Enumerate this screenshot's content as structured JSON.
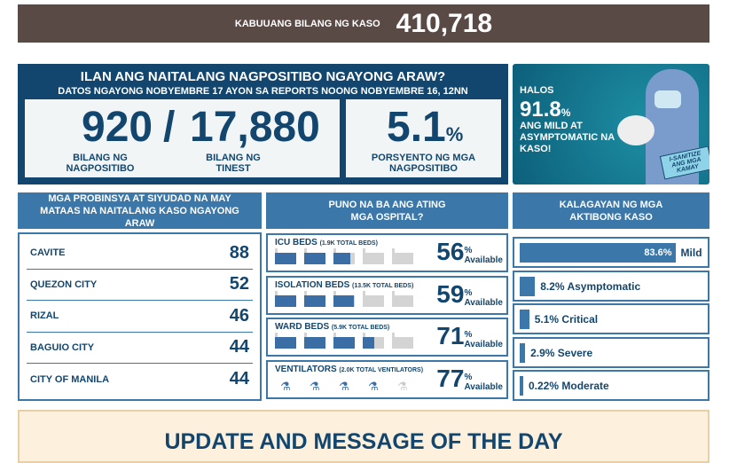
{
  "banner": {
    "label": "KABUUANG BILANG NG KASO",
    "total": "410,718"
  },
  "today": {
    "title": "ILAN ANG NAITALANG NAGPOSITIBO NGAYONG ARAW?",
    "subtitle": "DATOS NGAYONG NOBYEMBRE 17 AYON SA REPORTS NOONG NOBYEMBRE 16, 12NN",
    "positive": "920",
    "slash": "/",
    "tested": "17,880",
    "positive_label": "BILANG NG NAGPOSITIBO",
    "tested_label": "BILANG NG TINEST",
    "rate": "5.1",
    "rate_unit": "%",
    "rate_label": "PORSYENTO NG MGA NAGPOSITIBO"
  },
  "promo": {
    "halos": "HALOS",
    "value": "91.8",
    "unit": "%",
    "text": "ANG MILD AT ASYMPTOMATIC NA KASO!",
    "sign": "I-SANITIZE ANG MGA KAMAY"
  },
  "provinces": {
    "header": "MGA PROBINSYA AT SIYUDAD NA MAY MATAAS NA NAITALANG KASO NGAYONG ARAW",
    "items": [
      {
        "name": "CAVITE",
        "count": "88"
      },
      {
        "name": "QUEZON CITY",
        "count": "52"
      },
      {
        "name": "RIZAL",
        "count": "46"
      },
      {
        "name": "BAGUIO CITY",
        "count": "44"
      },
      {
        "name": "CITY OF MANILA",
        "count": "44"
      }
    ]
  },
  "hospitals": {
    "header": "PUNO NA BA ANG ATING MGA OSPITAL?",
    "pct_sign": "%",
    "available": "Available",
    "items": [
      {
        "name": "ICU BEDS",
        "total": "(1.9K TOTAL BEDS)",
        "value": "56",
        "fill": 0.56,
        "type": "bed"
      },
      {
        "name": "ISOLATION BEDS",
        "total": "(13.5K TOTAL BEDS)",
        "value": "59",
        "fill": 0.59,
        "type": "bed"
      },
      {
        "name": "WARD BEDS",
        "total": "(5.9K TOTAL BEDS)",
        "value": "71",
        "fill": 0.71,
        "type": "bed"
      },
      {
        "name": "VENTILATORS",
        "total": "(2.0K TOTAL VENTILATORS)",
        "value": "77",
        "fill": 0.77,
        "type": "vent"
      }
    ]
  },
  "severity": {
    "header": "KALAGAYAN NG MGA AKTIBONG KASO",
    "items": [
      {
        "pct": "83.6%",
        "label": "Mild",
        "value": 83.6
      },
      {
        "pct": "8.2%",
        "label": "Asymptomatic",
        "value": 8.2
      },
      {
        "pct": "5.1%",
        "label": "Critical",
        "value": 5.1
      },
      {
        "pct": "2.9%",
        "label": "Severe",
        "value": 2.9
      },
      {
        "pct": "0.22%",
        "label": "Moderate",
        "value": 0.22
      }
    ]
  },
  "update": {
    "title": "UPDATE AND MESSAGE OF THE DAY"
  },
  "colors": {
    "navy": "#13466e",
    "blue": "#3b77a9",
    "banner": "#5a4a46"
  }
}
